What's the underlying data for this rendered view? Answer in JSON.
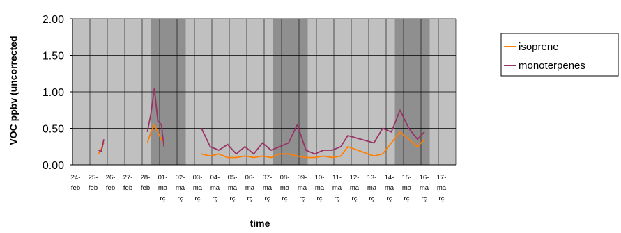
{
  "chart_data": {
    "type": "line",
    "title": "",
    "xlabel": "time",
    "ylabel": "VOC ppbv (uncorrected",
    "ylim": [
      0,
      2
    ],
    "yticks": [
      "0.00",
      "0.50",
      "1.00",
      "1.50",
      "2.00"
    ],
    "categories": [
      [
        "24-",
        "feb"
      ],
      [
        "25-",
        "feb"
      ],
      [
        "26-",
        "feb"
      ],
      [
        "27-",
        "feb"
      ],
      [
        "28-",
        "feb"
      ],
      [
        "01-",
        "ma",
        "rç"
      ],
      [
        "02-",
        "ma",
        "rç"
      ],
      [
        "03-",
        "ma",
        "rç"
      ],
      [
        "04-",
        "ma",
        "rç"
      ],
      [
        "05-",
        "ma",
        "rç"
      ],
      [
        "06-",
        "ma",
        "rç"
      ],
      [
        "07-",
        "ma",
        "rç"
      ],
      [
        "08-",
        "ma",
        "rç"
      ],
      [
        "09-",
        "ma",
        "rç"
      ],
      [
        "10-",
        "ma",
        "rç"
      ],
      [
        "11-",
        "ma",
        "rç"
      ],
      [
        "12-",
        "ma",
        "rç"
      ],
      [
        "13-",
        "ma",
        "rç"
      ],
      [
        "14-",
        "ma",
        "rç"
      ],
      [
        "15-",
        "ma",
        "rç"
      ],
      [
        "16-",
        "ma",
        "rç"
      ],
      [
        "17-",
        "ma",
        "rç"
      ]
    ],
    "shaded_periods": [
      [
        "28-feb",
        "01-març"
      ],
      [
        "07-març",
        "08-març"
      ],
      [
        "14-març",
        "15-març"
      ]
    ],
    "grid": true,
    "legend": "right",
    "series": [
      {
        "name": "isoprene",
        "color": "#ff7f00",
        "points": [
          [
            1.0,
            0.15
          ],
          [
            1.15,
            0.22
          ],
          [
            1.3,
            0.3
          ],
          [
            3.8,
            0.3
          ],
          [
            4.0,
            0.45
          ],
          [
            4.2,
            0.55
          ],
          [
            4.4,
            0.45
          ],
          [
            4.6,
            0.35
          ],
          [
            4.75,
            0.3
          ],
          [
            6.9,
            0.15
          ],
          [
            7.4,
            0.12
          ],
          [
            7.9,
            0.15
          ],
          [
            8.4,
            0.1
          ],
          [
            8.9,
            0.1
          ],
          [
            9.4,
            0.12
          ],
          [
            9.9,
            0.1
          ],
          [
            10.4,
            0.12
          ],
          [
            10.9,
            0.1
          ],
          [
            11.4,
            0.15
          ],
          [
            11.9,
            0.15
          ],
          [
            12.4,
            0.12
          ],
          [
            12.9,
            0.1
          ],
          [
            13.4,
            0.1
          ],
          [
            13.9,
            0.12
          ],
          [
            14.4,
            0.1
          ],
          [
            14.9,
            0.12
          ],
          [
            15.3,
            0.25
          ],
          [
            16.8,
            0.12
          ],
          [
            17.3,
            0.15
          ],
          [
            17.8,
            0.3
          ],
          [
            18.3,
            0.45
          ],
          [
            18.8,
            0.35
          ],
          [
            19.3,
            0.25
          ],
          [
            19.7,
            0.35
          ]
        ]
      },
      {
        "name": "monoterpenes",
        "color": "#993366",
        "points": [
          [
            1.0,
            0.2
          ],
          [
            1.15,
            0.18
          ],
          [
            1.3,
            0.35
          ],
          [
            3.8,
            0.45
          ],
          [
            4.0,
            0.7
          ],
          [
            4.2,
            1.05
          ],
          [
            4.4,
            0.6
          ],
          [
            4.6,
            0.55
          ],
          [
            4.75,
            0.25
          ],
          [
            6.9,
            0.5
          ],
          [
            7.4,
            0.25
          ],
          [
            7.9,
            0.2
          ],
          [
            8.4,
            0.28
          ],
          [
            8.9,
            0.15
          ],
          [
            9.4,
            0.25
          ],
          [
            9.9,
            0.15
          ],
          [
            10.4,
            0.3
          ],
          [
            10.9,
            0.2
          ],
          [
            11.4,
            0.25
          ],
          [
            11.9,
            0.3
          ],
          [
            12.4,
            0.55
          ],
          [
            12.9,
            0.2
          ],
          [
            13.4,
            0.15
          ],
          [
            13.9,
            0.2
          ],
          [
            14.4,
            0.2
          ],
          [
            14.9,
            0.25
          ],
          [
            15.3,
            0.4
          ],
          [
            16.8,
            0.3
          ],
          [
            17.3,
            0.5
          ],
          [
            17.8,
            0.45
          ],
          [
            18.3,
            0.75
          ],
          [
            18.8,
            0.5
          ],
          [
            19.3,
            0.35
          ],
          [
            19.7,
            0.45
          ]
        ]
      }
    ]
  }
}
